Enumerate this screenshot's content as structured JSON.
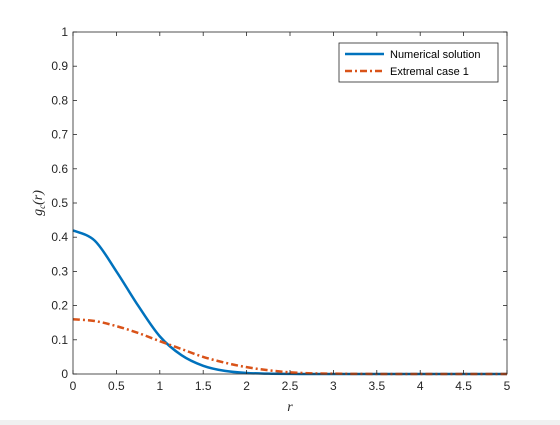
{
  "chart_data": {
    "type": "line",
    "title": "",
    "xlabel": "r",
    "ylabel": "g_c(r)",
    "ylabel_main": "g",
    "ylabel_sub": "c",
    "ylabel_arg": "(r)",
    "xlim": [
      0,
      5
    ],
    "ylim": [
      0,
      1
    ],
    "xticks": [
      0,
      0.5,
      1,
      1.5,
      2,
      2.5,
      3,
      3.5,
      4,
      4.5,
      5
    ],
    "xtick_labels": [
      "0",
      "0.5",
      "1",
      "1.5",
      "2",
      "2.5",
      "3",
      "3.5",
      "4",
      "4.5",
      "5"
    ],
    "yticks": [
      0,
      0.1,
      0.2,
      0.3,
      0.4,
      0.5,
      0.6,
      0.7,
      0.8,
      0.9,
      1
    ],
    "ytick_labels": [
      "0",
      "0.1",
      "0.2",
      "0.3",
      "0.4",
      "0.5",
      "0.6",
      "0.7",
      "0.8",
      "0.9",
      "1"
    ],
    "grid": false,
    "legend_position": "top-right",
    "x": [
      0,
      0.25,
      0.5,
      0.75,
      1,
      1.25,
      1.5,
      1.75,
      2,
      2.25,
      2.5,
      2.75,
      3,
      3.5,
      4,
      4.5,
      5
    ],
    "series": [
      {
        "name": "Numerical solution",
        "color": "#0072bd",
        "style": "solid",
        "values": [
          0.42,
          0.39,
          0.3,
          0.2,
          0.11,
          0.055,
          0.024,
          0.009,
          0.003,
          0.001,
          0.0003,
          0.0001,
          0,
          0,
          0,
          0,
          0
        ]
      },
      {
        "name": "Extremal case 1",
        "color": "#d95319",
        "style": "dashdot",
        "values": [
          0.16,
          0.155,
          0.14,
          0.12,
          0.096,
          0.073,
          0.05,
          0.033,
          0.02,
          0.011,
          0.005,
          0.002,
          0.001,
          0,
          0,
          0,
          0
        ]
      }
    ]
  }
}
